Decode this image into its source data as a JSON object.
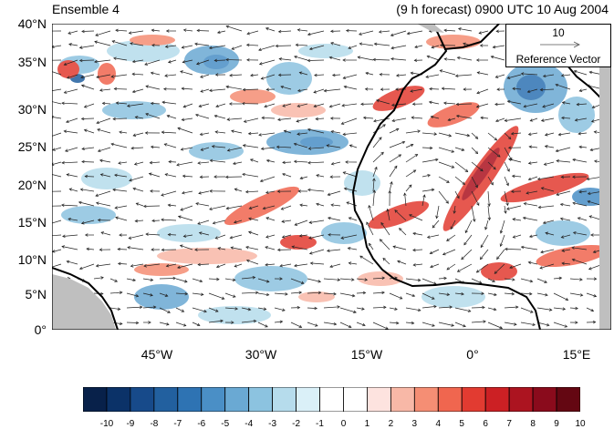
{
  "header": {
    "left_title": "Ensemble 4",
    "right_title": "(9 h forecast) 0900 UTC 10 Aug 2004"
  },
  "map": {
    "lat_labels": [
      "40°N",
      "35°N",
      "30°N",
      "25°N",
      "20°N",
      "15°N",
      "10°N",
      "5°N",
      "0°"
    ],
    "lon_labels": [
      "45°W",
      "30°W",
      "15°W",
      "0°",
      "15°E"
    ],
    "extent": {
      "lon_min": -57,
      "lon_max": 20,
      "lat_min": 0,
      "lat_max": 40
    }
  },
  "reference_vector": {
    "magnitude": "10",
    "label": "Reference Vector"
  },
  "colorbar": {
    "ticks": [
      "-10",
      "-9",
      "-8",
      "-7",
      "-6",
      "-5",
      "-4",
      "-3",
      "-2",
      "-1",
      "0",
      "1",
      "2",
      "3",
      "4",
      "5",
      "6",
      "7",
      "8",
      "9",
      "10"
    ],
    "colors": [
      "#08214a",
      "#0b3268",
      "#174a8a",
      "#22609f",
      "#2e73b3",
      "#4a8fc6",
      "#6aa9d3",
      "#8cc3e0",
      "#b6dcec",
      "#daf0f8",
      "#ffffff",
      "#ffffff",
      "#fde3df",
      "#f8b8a7",
      "#f58e74",
      "#f0664f",
      "#e23b31",
      "#cc2024",
      "#ac1420",
      "#8a0b1c",
      "#640712"
    ]
  }
}
